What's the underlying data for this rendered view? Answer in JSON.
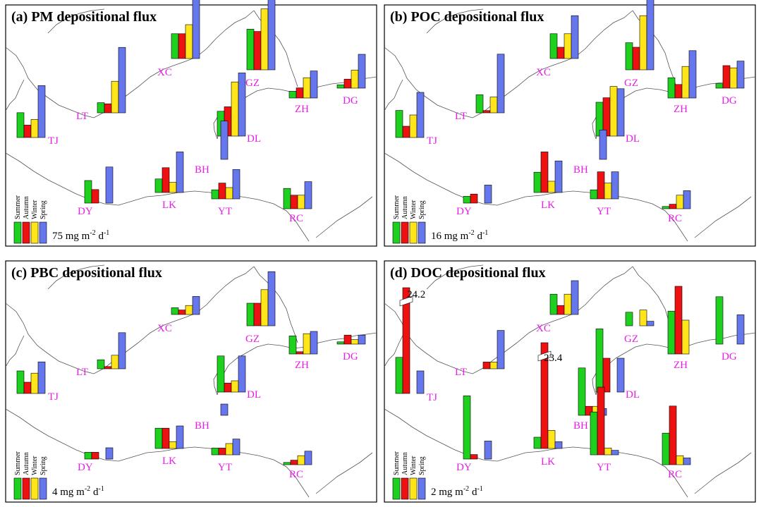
{
  "figure": {
    "seasons": [
      "Summer",
      "Autumn",
      "Winter",
      "Spring"
    ],
    "season_colors": [
      "#1fd11f",
      "#ee1111",
      "#ffe51a",
      "#6677ee"
    ],
    "label_color": "#e61ee6",
    "coast_color": "#555555",
    "unit_prefix": "mg m",
    "unit_exp1": "-2",
    "unit_mid": " d",
    "unit_exp2": "-1"
  },
  "chart_data": [
    {
      "type": "bar",
      "title": "(a) PM depositional flux",
      "scale_value": "75",
      "sites": [
        {
          "name": "XC",
          "values": [
            1.1,
            1.1,
            1.5,
            3.0
          ]
        },
        {
          "name": "GZ",
          "values": [
            1.8,
            1.7,
            2.7,
            5.0
          ]
        },
        {
          "name": "LT",
          "values": [
            0.45,
            0.4,
            1.4,
            2.9
          ]
        },
        {
          "name": "ZH",
          "values": [
            0.3,
            0.45,
            0.9,
            1.2
          ]
        },
        {
          "name": "DG",
          "values": [
            0.15,
            0.4,
            0.8,
            1.5
          ]
        },
        {
          "name": "TJ",
          "values": [
            1.1,
            0.55,
            0.8,
            2.3
          ]
        },
        {
          "name": "DL",
          "values": [
            1.1,
            1.3,
            2.4,
            2.8
          ]
        },
        {
          "name": "BH",
          "values": [
            0,
            0,
            0,
            1.7
          ]
        },
        {
          "name": "DY",
          "values": [
            1.0,
            0.6,
            0,
            1.6
          ]
        },
        {
          "name": "LK",
          "values": [
            0.6,
            1.1,
            0.45,
            1.8
          ]
        },
        {
          "name": "YT",
          "values": [
            0.4,
            0.7,
            0.5,
            1.3
          ]
        },
        {
          "name": "RC",
          "values": [
            0.9,
            0.6,
            0.6,
            1.2
          ]
        }
      ]
    },
    {
      "type": "bar",
      "title": "(b) POC depositional flux",
      "scale_value": "16",
      "sites": [
        {
          "name": "XC",
          "values": [
            1.1,
            0.5,
            1.1,
            1.9
          ]
        },
        {
          "name": "GZ",
          "values": [
            1.2,
            1.0,
            2.4,
            3.8
          ]
        },
        {
          "name": "LT",
          "values": [
            0.8,
            0.1,
            0.7,
            2.6
          ]
        },
        {
          "name": "ZH",
          "values": [
            0.9,
            0.6,
            1.4,
            2.1
          ]
        },
        {
          "name": "DG",
          "values": [
            0.2,
            1.0,
            0.9,
            1.2
          ]
        },
        {
          "name": "TJ",
          "values": [
            1.2,
            0.5,
            1.0,
            2.0
          ]
        },
        {
          "name": "DL",
          "values": [
            1.5,
            1.7,
            2.2,
            2.1
          ]
        },
        {
          "name": "BH",
          "values": [
            0,
            0,
            0,
            1.3
          ]
        },
        {
          "name": "DY",
          "values": [
            0.3,
            0.4,
            0,
            0.8
          ]
        },
        {
          "name": "LK",
          "values": [
            0.9,
            1.8,
            0.5,
            1.4
          ]
        },
        {
          "name": "YT",
          "values": [
            0.4,
            1.2,
            0.7,
            1.2
          ]
        },
        {
          "name": "RC",
          "values": [
            0.1,
            0.2,
            0.6,
            0.8
          ]
        }
      ]
    },
    {
      "type": "bar",
      "title": "(c) PBC depositional flux",
      "scale_value": "4",
      "sites": [
        {
          "name": "XC",
          "values": [
            0.3,
            0.2,
            0.4,
            0.8
          ]
        },
        {
          "name": "GZ",
          "values": [
            1.0,
            1.0,
            1.6,
            2.4
          ]
        },
        {
          "name": "LT",
          "values": [
            0.4,
            0.1,
            0.6,
            1.6
          ]
        },
        {
          "name": "ZH",
          "values": [
            0.8,
            0.1,
            0.9,
            1.0
          ]
        },
        {
          "name": "DG",
          "values": [
            0.1,
            0.4,
            0.2,
            0.4
          ]
        },
        {
          "name": "TJ",
          "values": [
            1.0,
            0.5,
            0.9,
            1.4
          ]
        },
        {
          "name": "DL",
          "values": [
            1.6,
            0.4,
            0.5,
            1.6
          ]
        },
        {
          "name": "BH",
          "values": [
            0,
            0,
            0,
            0.5
          ]
        },
        {
          "name": "DY",
          "values": [
            0.3,
            0.3,
            0,
            0.5
          ]
        },
        {
          "name": "LK",
          "values": [
            0.9,
            0.9,
            0.3,
            1.0
          ]
        },
        {
          "name": "YT",
          "values": [
            0.3,
            0.3,
            0.5,
            0.7
          ]
        },
        {
          "name": "RC",
          "values": [
            0.1,
            0.2,
            0.4,
            0.6
          ]
        }
      ]
    },
    {
      "type": "bar",
      "title": "(d) DOC depositional flux",
      "scale_value": "2",
      "sites": [
        {
          "name": "XC",
          "values": [
            0.9,
            0.4,
            0.9,
            1.5
          ]
        },
        {
          "name": "GZ",
          "values": [
            0.6,
            0,
            0.7,
            0.2
          ]
        },
        {
          "name": "LT",
          "values": [
            0,
            0.3,
            0.3,
            1.7
          ]
        },
        {
          "name": "ZH",
          "values": [
            1.9,
            3.0,
            1.5,
            0
          ]
        },
        {
          "name": "DG",
          "values": [
            2.1,
            0,
            0,
            1.3
          ]
        },
        {
          "name": "TJ",
          "values": [
            1.6,
            24.2,
            0,
            1.0
          ]
        },
        {
          "name": "DL",
          "values": [
            2.8,
            1.5,
            0,
            1.5
          ]
        },
        {
          "name": "BH",
          "values": [
            2.1,
            0.4,
            0.4,
            0.3
          ]
        },
        {
          "name": "DY",
          "values": [
            2.8,
            0.2,
            0,
            0.8
          ]
        },
        {
          "name": "LK",
          "values": [
            0.5,
            23.4,
            0.8,
            0.3
          ]
        },
        {
          "name": "YT",
          "values": [
            1.9,
            3.0,
            0.3,
            0.2
          ]
        },
        {
          "name": "RC",
          "values": [
            1.4,
            2.6,
            0.4,
            0.3
          ]
        }
      ],
      "annotations": [
        "24.2",
        "23.4"
      ]
    }
  ]
}
